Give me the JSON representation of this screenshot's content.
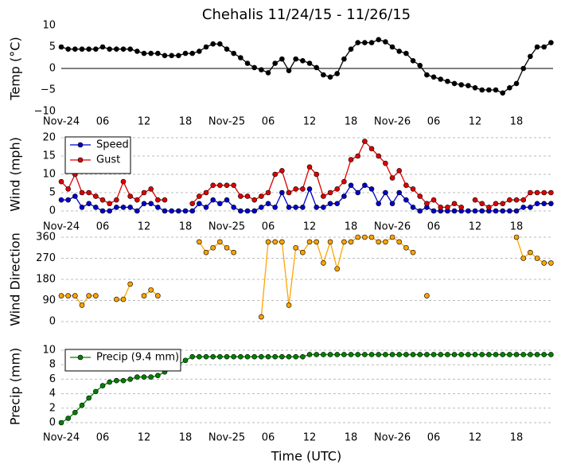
{
  "chart_data": [
    {
      "type": "line",
      "title": "Chehalis 11/24/15 - 11/26/15",
      "ylabel": "Temp (°C)",
      "x": [
        0,
        1,
        2,
        3,
        4,
        5,
        6,
        7,
        8,
        9,
        10,
        11,
        12,
        13,
        14,
        15,
        16,
        17,
        18,
        19,
        20,
        21,
        22,
        23,
        24,
        25,
        26,
        27,
        28,
        29,
        30,
        31,
        32,
        33,
        34,
        35,
        36,
        37,
        38,
        39,
        40,
        41,
        42,
        43,
        44,
        45,
        46,
        47,
        48,
        49,
        50,
        51,
        52,
        53,
        54,
        55,
        56,
        57,
        58,
        59,
        60,
        61,
        62,
        63,
        64,
        65,
        66,
        67,
        68,
        69,
        70,
        71
      ],
      "xlim": [
        0,
        71.3
      ],
      "xticks": [
        {
          "value": 0,
          "label": "Nov-24"
        },
        {
          "value": 6,
          "label": "06"
        },
        {
          "value": 12,
          "label": "12"
        },
        {
          "value": 18,
          "label": "18"
        },
        {
          "value": 24,
          "label": "Nov-25"
        },
        {
          "value": 30,
          "label": "06"
        },
        {
          "value": 36,
          "label": "12"
        },
        {
          "value": 42,
          "label": "18"
        },
        {
          "value": 48,
          "label": "Nov-26"
        },
        {
          "value": 54,
          "label": "06"
        },
        {
          "value": 60,
          "label": "12"
        },
        {
          "value": 66,
          "label": "18"
        }
      ],
      "ylim": [
        -10,
        10
      ],
      "yticks": [
        {
          "value": -10,
          "label": "−10"
        },
        {
          "value": -5,
          "label": "−5"
        },
        0,
        5,
        10
      ],
      "grid": false,
      "series": [
        {
          "color": "#000000",
          "values": [
            5,
            4.5,
            4.5,
            4.5,
            4.5,
            4.5,
            5,
            4.5,
            4.5,
            4.5,
            4.5,
            4,
            3.5,
            3.5,
            3.5,
            3,
            3,
            3,
            3.5,
            3.5,
            4,
            5,
            5.7,
            5.7,
            4.5,
            3.5,
            2.5,
            1.2,
            0.2,
            -0.3,
            -1,
            1.2,
            2.2,
            -0.5,
            2.2,
            1.8,
            1.2,
            0.2,
            -1.5,
            -2,
            -1.2,
            2.2,
            4.5,
            6,
            6,
            6,
            6.7,
            6.2,
            5,
            4,
            3.5,
            1.8,
            0.7,
            -1.5,
            -2,
            -2.5,
            -3,
            -3.5,
            -3.8,
            -4,
            -4.5,
            -5,
            -5,
            -5,
            -5.7,
            -4.5,
            -3.5,
            0,
            2.8,
            5,
            5,
            6
          ]
        }
      ]
    },
    {
      "type": "line",
      "ylabel": "Wind (mph)",
      "x": [
        0,
        1,
        2,
        3,
        4,
        5,
        6,
        7,
        8,
        9,
        10,
        11,
        12,
        13,
        14,
        15,
        16,
        17,
        18,
        19,
        20,
        21,
        22,
        23,
        24,
        25,
        26,
        27,
        28,
        29,
        30,
        31,
        32,
        33,
        34,
        35,
        36,
        37,
        38,
        39,
        40,
        41,
        42,
        43,
        44,
        45,
        46,
        47,
        48,
        49,
        50,
        51,
        52,
        53,
        54,
        55,
        56,
        57,
        58,
        59,
        60,
        61,
        62,
        63,
        64,
        65,
        66,
        67,
        68,
        69,
        70,
        71
      ],
      "xlim": [
        0,
        71.3
      ],
      "xticks": [
        {
          "value": 0,
          "label": "Nov-24"
        },
        {
          "value": 6,
          "label": "06"
        },
        {
          "value": 12,
          "label": "12"
        },
        {
          "value": 18,
          "label": "18"
        },
        {
          "value": 24,
          "label": "Nov-25"
        },
        {
          "value": 30,
          "label": "06"
        },
        {
          "value": 36,
          "label": "12"
        },
        {
          "value": 42,
          "label": "18"
        },
        {
          "value": 48,
          "label": "Nov-26"
        },
        {
          "value": 54,
          "label": "06"
        },
        {
          "value": 60,
          "label": "12"
        },
        {
          "value": 66,
          "label": "18"
        }
      ],
      "ylim": [
        0,
        20
      ],
      "yticks": [
        0,
        5,
        10,
        15,
        20
      ],
      "grid": true,
      "legend": "upper left",
      "series": [
        {
          "name": "Speed",
          "color": "#0000cc",
          "values": [
            3,
            3,
            4,
            1,
            2,
            1,
            0,
            0,
            1,
            1,
            1,
            0,
            2,
            2,
            1,
            0,
            0,
            0,
            0,
            0,
            2,
            1,
            3,
            2,
            3,
            1,
            0,
            0,
            0,
            1,
            2,
            1,
            5,
            1,
            1,
            1,
            6,
            1,
            1,
            2,
            2,
            4,
            7,
            5,
            7,
            6,
            2,
            5,
            2,
            5,
            3,
            1,
            0,
            1,
            0,
            0,
            0,
            0,
            0,
            0,
            0,
            0,
            0,
            0,
            0,
            0,
            0,
            1,
            1,
            2,
            2,
            2
          ]
        },
        {
          "name": "Gust",
          "color": "#dd0000",
          "values": [
            8,
            6,
            10,
            5,
            5,
            4,
            3,
            2,
            3,
            8,
            4,
            3,
            5,
            6,
            3,
            3,
            null,
            null,
            null,
            2,
            4,
            5,
            7,
            7,
            7,
            7,
            4,
            4,
            3,
            4,
            5,
            10,
            11,
            5,
            6,
            6,
            12,
            10,
            4,
            5,
            6,
            8,
            14,
            15,
            19,
            17,
            15,
            13,
            9,
            11,
            7,
            6,
            4,
            2,
            3,
            1,
            1,
            2,
            1,
            null,
            3,
            2,
            1,
            2,
            2,
            3,
            3,
            3,
            5,
            5,
            5,
            5
          ]
        }
      ]
    },
    {
      "type": "line",
      "ylabel": "Wind Direction",
      "x": [
        0,
        1,
        2,
        3,
        4,
        5,
        6,
        7,
        8,
        9,
        10,
        11,
        12,
        13,
        14,
        15,
        16,
        17,
        18,
        19,
        20,
        21,
        22,
        23,
        24,
        25,
        26,
        27,
        28,
        29,
        30,
        31,
        32,
        33,
        34,
        35,
        36,
        37,
        38,
        39,
        40,
        41,
        42,
        43,
        44,
        45,
        46,
        47,
        48,
        49,
        50,
        51,
        52,
        53,
        54,
        55,
        56,
        57,
        58,
        59,
        60,
        61,
        62,
        63,
        64,
        65,
        66,
        67,
        68,
        69,
        70,
        71
      ],
      "xlim": [
        0,
        71.3
      ],
      "ylim": [
        0,
        360
      ],
      "yticks": [
        0,
        90,
        180,
        270,
        360
      ],
      "grid": true,
      "series": [
        {
          "color": "#ffa500",
          "values": [
            110,
            110,
            110,
            70,
            110,
            110,
            null,
            null,
            95,
            95,
            160,
            null,
            110,
            135,
            110,
            null,
            null,
            null,
            null,
            null,
            340,
            295,
            315,
            340,
            315,
            295,
            null,
            null,
            null,
            20,
            340,
            340,
            340,
            70,
            315,
            295,
            340,
            340,
            250,
            340,
            225,
            340,
            340,
            360,
            360,
            360,
            340,
            340,
            360,
            340,
            315,
            295,
            null,
            110,
            null,
            null,
            null,
            null,
            null,
            null,
            null,
            null,
            null,
            null,
            null,
            null,
            360,
            270,
            295,
            270,
            250,
            250
          ]
        }
      ]
    },
    {
      "type": "line",
      "ylabel": "Precip (mm)",
      "xlabel": "Time (UTC)",
      "x": [
        0,
        1,
        2,
        3,
        4,
        5,
        6,
        7,
        8,
        9,
        10,
        11,
        12,
        13,
        14,
        15,
        16,
        17,
        18,
        19,
        20,
        21,
        22,
        23,
        24,
        25,
        26,
        27,
        28,
        29,
        30,
        31,
        32,
        33,
        34,
        35,
        36,
        37,
        38,
        39,
        40,
        41,
        42,
        43,
        44,
        45,
        46,
        47,
        48,
        49,
        50,
        51,
        52,
        53,
        54,
        55,
        56,
        57,
        58,
        59,
        60,
        61,
        62,
        63,
        64,
        65,
        66,
        67,
        68,
        69,
        70,
        71
      ],
      "xlim": [
        0,
        71.3
      ],
      "xticks": [
        {
          "value": 0,
          "label": "Nov-24"
        },
        {
          "value": 6,
          "label": "06"
        },
        {
          "value": 12,
          "label": "12"
        },
        {
          "value": 18,
          "label": "18"
        },
        {
          "value": 24,
          "label": "Nov-25"
        },
        {
          "value": 30,
          "label": "06"
        },
        {
          "value": 36,
          "label": "12"
        },
        {
          "value": 42,
          "label": "18"
        },
        {
          "value": 48,
          "label": "Nov-26"
        },
        {
          "value": 54,
          "label": "06"
        },
        {
          "value": 60,
          "label": "12"
        },
        {
          "value": 66,
          "label": "18"
        }
      ],
      "ylim": [
        0,
        10
      ],
      "yticks": [
        0,
        2,
        4,
        6,
        8,
        10
      ],
      "grid": true,
      "legend": "upper left",
      "series": [
        {
          "name": "Precip (9.4 mm)",
          "color": "#008000",
          "values": [
            0,
            0.6,
            1.4,
            2.4,
            3.4,
            4.3,
            5.1,
            5.6,
            5.8,
            5.8,
            6.0,
            6.3,
            6.3,
            6.3,
            6.5,
            7.0,
            7.6,
            8.0,
            8.6,
            9.1,
            9.1,
            9.1,
            9.1,
            9.1,
            9.1,
            9.1,
            9.1,
            9.1,
            9.1,
            9.1,
            9.1,
            9.1,
            9.1,
            9.1,
            9.1,
            9.1,
            9.4,
            9.4,
            9.4,
            9.4,
            9.4,
            9.4,
            9.4,
            9.4,
            9.4,
            9.4,
            9.4,
            9.4,
            9.4,
            9.4,
            9.4,
            9.4,
            9.4,
            9.4,
            9.4,
            9.4,
            9.4,
            9.4,
            9.4,
            9.4,
            9.4,
            9.4,
            9.4,
            9.4,
            9.4,
            9.4,
            9.4,
            9.4,
            9.4,
            9.4,
            9.4,
            9.4
          ]
        }
      ]
    }
  ]
}
